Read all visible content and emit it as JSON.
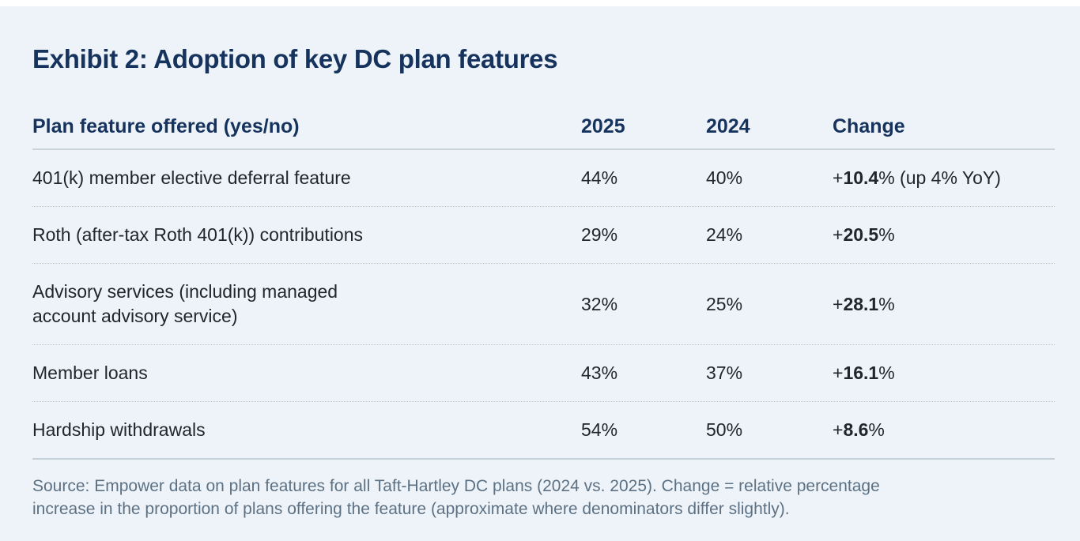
{
  "title": "Exhibit 2: Adoption of key DC plan features",
  "colors": {
    "accent_navy": "#16335e",
    "background": "#edf3f8",
    "body_text": "#21262e",
    "source_text": "#5d7184"
  },
  "table": {
    "headers": {
      "feature": "Plan feature offered (yes/no)",
      "col2025": "2025",
      "col2024": "2024",
      "change": "Change"
    },
    "rows": [
      {
        "feature": "401(k) member elective deferral feature",
        "y2025": "44%",
        "y2024": "40%",
        "change_prefix": "+",
        "change_value": "10.4",
        "change_suffix": "% (up 4% YoY)"
      },
      {
        "feature": "Roth (after-tax Roth 401(k)) contributions",
        "y2025": "29%",
        "y2024": "24%",
        "change_prefix": "+",
        "change_value": "20.5",
        "change_suffix": "%"
      },
      {
        "feature": "Advisory services (including managed\naccount advisory service)",
        "y2025": "32%",
        "y2024": "25%",
        "change_prefix": "+",
        "change_value": "28.1",
        "change_suffix": "%"
      },
      {
        "feature": "Member loans",
        "y2025": "43%",
        "y2024": "37%",
        "change_prefix": "+",
        "change_value": "16.1",
        "change_suffix": "%"
      },
      {
        "feature": "Hardship withdrawals",
        "y2025": "54%",
        "y2024": "50%",
        "change_prefix": "+",
        "change_value": "8.6",
        "change_suffix": "%"
      }
    ]
  },
  "source": "Source: Empower data on plan features for all Taft-Hartley DC plans (2024 vs. 2025). Change = relative percentage\nincrease in the proportion of plans offering the feature (approximate where denominators differ slightly).",
  "chart_data": {
    "type": "table",
    "title": "Exhibit 2: Adoption of key DC plan features",
    "columns": [
      "Plan feature offered (yes/no)",
      "2025",
      "2024",
      "Change"
    ],
    "rows": [
      [
        "401(k) member elective deferral feature",
        "44%",
        "40%",
        "+10.4% (up 4% YoY)"
      ],
      [
        "Roth (after-tax Roth 401(k)) contributions",
        "29%",
        "24%",
        "+20.5%"
      ],
      [
        "Advisory services (including managed account advisory service)",
        "32%",
        "25%",
        "+28.1%"
      ],
      [
        "Member loans",
        "43%",
        "37%",
        "+16.1%"
      ],
      [
        "Hardship withdrawals",
        "54%",
        "50%",
        "+8.6%"
      ]
    ],
    "notes": "Source: Empower data on plan features for all Taft-Hartley DC plans (2024 vs. 2025). Change = relative percentage increase in the proportion of plans offering the feature (approximate where denominators differ slightly)."
  }
}
